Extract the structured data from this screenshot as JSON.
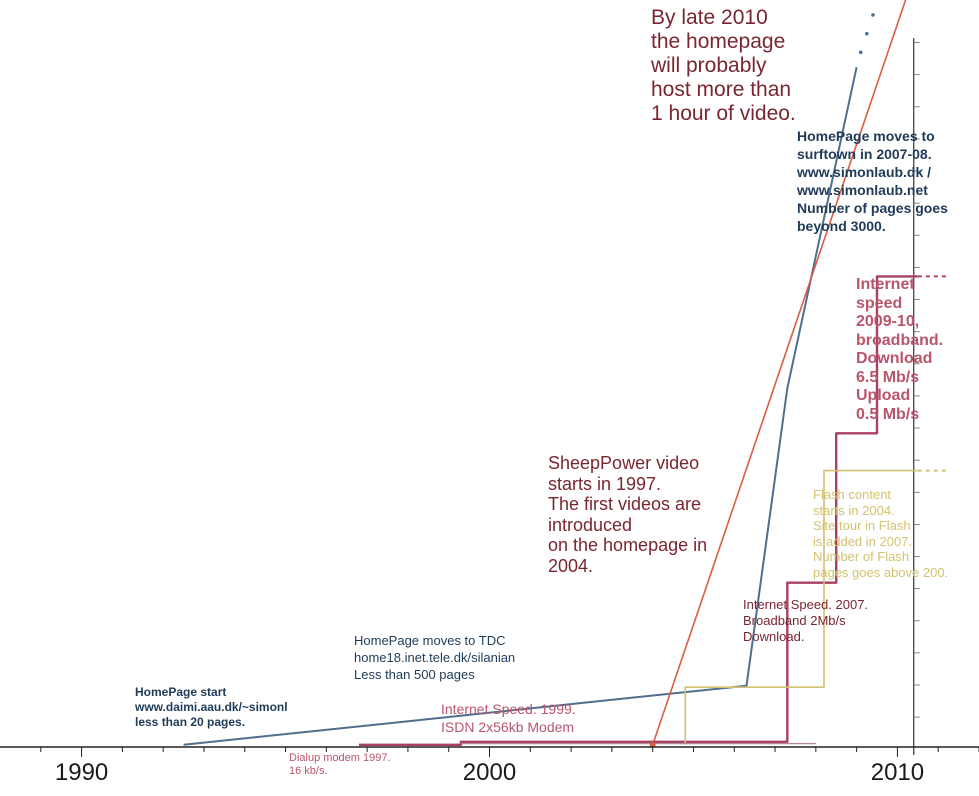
{
  "chart_data": {
    "type": "line",
    "title": "",
    "xlabel": "",
    "ylabel": "",
    "xlim": [
      1988,
      2012
    ],
    "x_ticks": [
      "1990",
      "2000",
      "2010"
    ],
    "series": [
      {
        "color": "#4e6f8d",
        "x": [
          1992.5,
          2006.3,
          2007.3,
          2009
        ],
        "y": [
          0.3,
          8.2,
          48,
          91
        ]
      },
      {
        "color": "#d95d45",
        "x": [
          2004,
          2010.2
        ],
        "y": [
          0.3,
          100
        ]
      },
      {
        "color": "#a84060",
        "x": [
          1996.8,
          1999.3,
          1999.3,
          2007.3,
          2007.3,
          2008.5,
          2008.5,
          2009.5,
          2009.5,
          2010.5
        ],
        "y": [
          0.3,
          0.3,
          0.7,
          0.7,
          22,
          22,
          42,
          42,
          63,
          63
        ],
        "dashed_tail": true
      },
      {
        "color": "#d2c271",
        "x": [
          2004.8,
          2004.8,
          2008.2,
          2008.2,
          2010.5
        ],
        "y": [
          0.3,
          8,
          8,
          37,
          37
        ],
        "dashed_tail": true
      },
      {
        "color": "#b5889a",
        "x": [
          1999.3,
          2008.0
        ],
        "y": [
          0.45,
          0.45
        ]
      }
    ],
    "annotations": [
      {
        "key": "homepage_start",
        "text": "HomePage start\nwww.daimi.aau.dk/~simonl\nless than 20 pages."
      },
      {
        "key": "tdc",
        "text": "HomePage moves to TDC\nhome18.inet.tele.dk/silanian\nLess than 500 pages"
      },
      {
        "key": "surftown",
        "text": "HomePage moves to\nsurftown in 2007-08.\nwww.simonlaub.dk /\nwww.simonlaub.net\nNumber of    pages goes\nbeyond 3000."
      },
      {
        "key": "late2010",
        "text": "By late 2010\nthe homepage\nwill probably\nhost more than\n1 hour of video."
      },
      {
        "key": "sheeppower",
        "text": "SheepPower video\nstarts in 1997.\nThe first videos are\nintroduced\non the homepage in\n2004."
      },
      {
        "key": "speed2009",
        "text": "Internet\nspeed\n2009-10,\nbroadband.\nDownload\n6.5 Mb/s\nUpload\n0.5 Mb/s"
      },
      {
        "key": "flash",
        "text": "Flash content\nstarts in 2004.\nSite tour in Flash\nis added in 2007.\nNumber of Flash\npages goes above 200."
      },
      {
        "key": "speed2007",
        "text": "Internet Speed. 2007.\nBroadband 2Mb/s\nDownload."
      },
      {
        "key": "speed1999",
        "text": "Internet Speed. 1999.\nISDN 2x56kb Modem"
      },
      {
        "key": "dialup",
        "text": "Dialup modem 1997.\n16 kb/s."
      }
    ]
  },
  "colors": {
    "axis": "#222222",
    "pages": "#4e6f8d",
    "video": "#d95d45",
    "speed": "#a84060",
    "flash": "#d2c271"
  }
}
